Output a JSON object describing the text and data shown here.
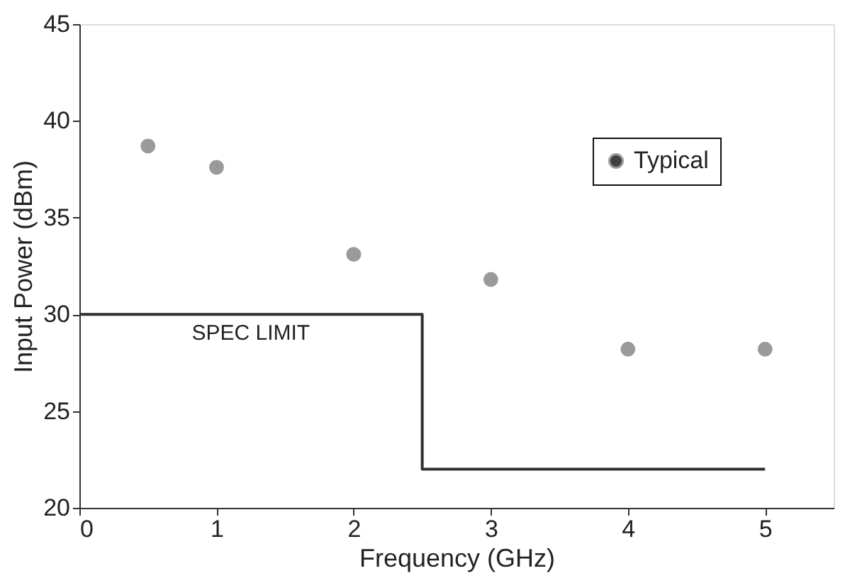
{
  "chart_data": {
    "type": "scatter",
    "xlabel": "Frequency (GHz)",
    "ylabel": "Input Power (dBm)",
    "xlim": [
      0,
      5.5
    ],
    "xticks": [
      0,
      1,
      2,
      3,
      4,
      5
    ],
    "ylim": [
      20,
      45
    ],
    "yticks": [
      20,
      25,
      30,
      35,
      40,
      45
    ],
    "grid": false,
    "legend": "top right",
    "series": [
      {
        "name": "Typical",
        "marker": "circle",
        "color": "#404040",
        "x": [
          0.5,
          1,
          2,
          3,
          4,
          5
        ],
        "values": [
          38.7,
          37.6,
          33.1,
          31.8,
          28.2,
          28.2
        ]
      },
      {
        "name": "SPEC LIMIT",
        "type": "step",
        "marker": "none",
        "color": "#303030",
        "x": [
          0,
          2.5,
          5
        ],
        "values": [
          30,
          22,
          22
        ]
      }
    ]
  }
}
